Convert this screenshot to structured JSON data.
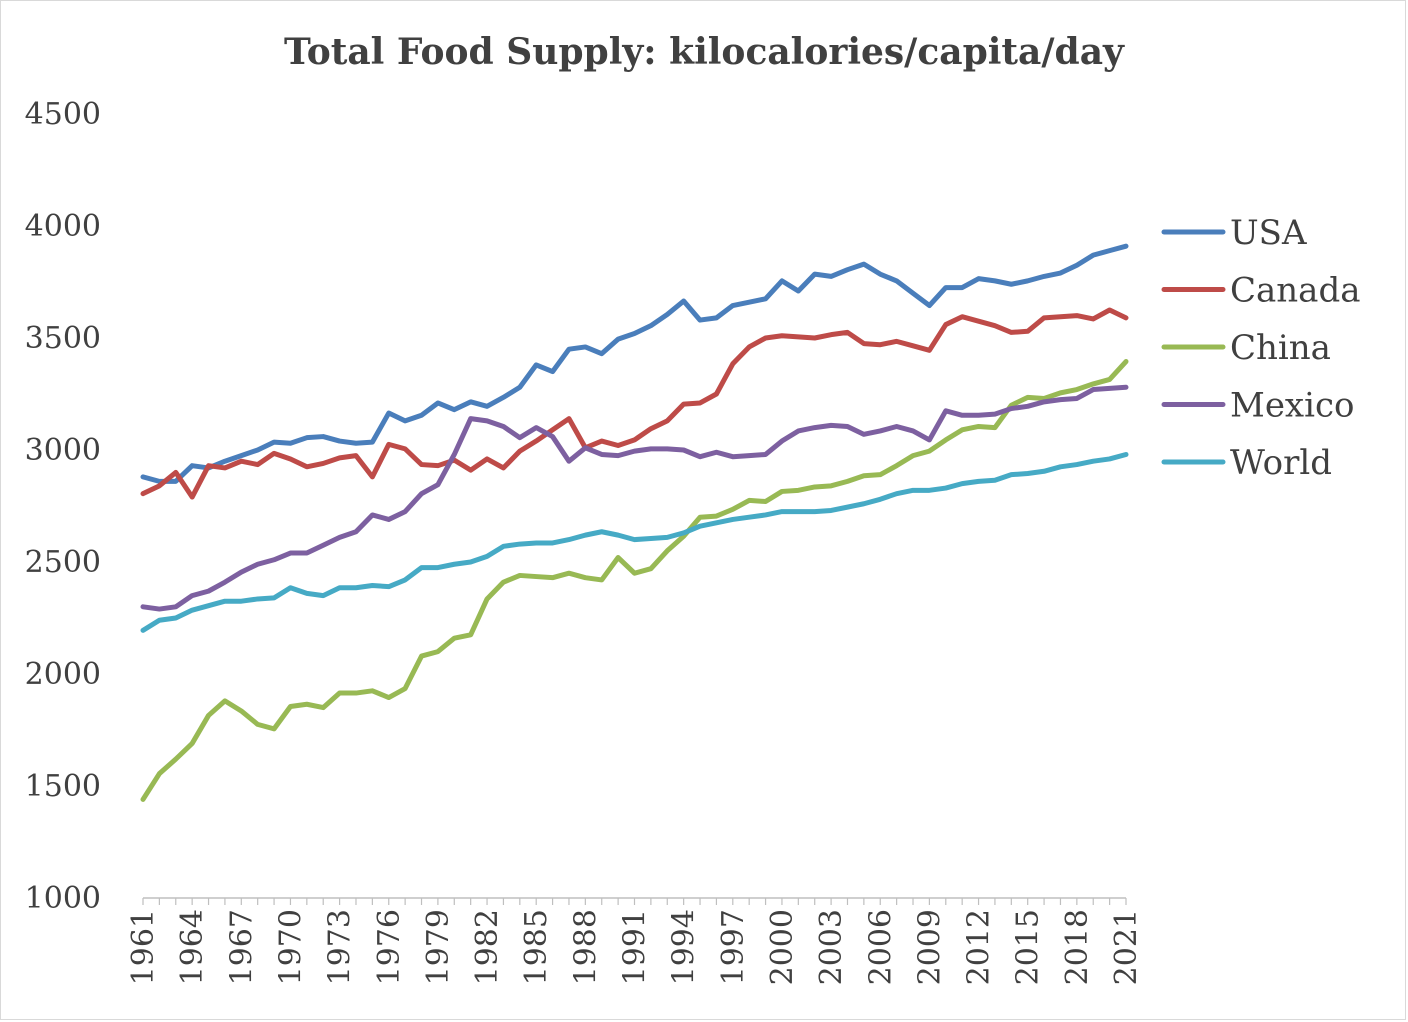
{
  "chart_data": {
    "type": "line",
    "title": "Total Food Supply: kilocalories/capita/day",
    "xlabel": "",
    "ylabel": "",
    "ylim": [
      1000,
      4500
    ],
    "yticks": [
      1000,
      1500,
      2000,
      2500,
      3000,
      3500,
      4000,
      4500
    ],
    "xtick_labels": [
      "1961",
      "1964",
      "1967",
      "1970",
      "1973",
      "1976",
      "1979",
      "1982",
      "1985",
      "1988",
      "1991",
      "1994",
      "1997",
      "2000",
      "2003",
      "2006",
      "2009",
      "2012",
      "2015",
      "2018",
      "2021"
    ],
    "grid": false,
    "legend_position": "right",
    "x": [
      1961,
      1962,
      1963,
      1964,
      1965,
      1966,
      1967,
      1968,
      1969,
      1970,
      1971,
      1972,
      1973,
      1974,
      1975,
      1976,
      1977,
      1978,
      1979,
      1980,
      1981,
      1982,
      1983,
      1984,
      1985,
      1986,
      1987,
      1988,
      1989,
      1990,
      1991,
      1992,
      1993,
      1994,
      1995,
      1996,
      1997,
      1998,
      1999,
      2000,
      2001,
      2002,
      2003,
      2004,
      2005,
      2006,
      2007,
      2008,
      2009,
      2010,
      2011,
      2012,
      2013,
      2014,
      2015,
      2016,
      2017,
      2018,
      2019,
      2020,
      2021
    ],
    "series": [
      {
        "name": "USA",
        "color": "#4a7ebb",
        "values": [
          2880,
          2860,
          2860,
          2930,
          2920,
          2950,
          2975,
          3000,
          3035,
          3030,
          3055,
          3060,
          3040,
          3030,
          3035,
          3165,
          3130,
          3155,
          3210,
          3180,
          3215,
          3195,
          3235,
          3280,
          3380,
          3350,
          3450,
          3460,
          3430,
          3495,
          3520,
          3555,
          3605,
          3665,
          3580,
          3590,
          3645,
          3660,
          3675,
          3755,
          3710,
          3785,
          3775,
          3805,
          3830,
          3785,
          3755,
          3700,
          3645,
          3725,
          3725,
          3765,
          3755,
          3740,
          3755,
          3775,
          3790,
          3825,
          3870,
          3890,
          3910
        ]
      },
      {
        "name": "Canada",
        "color": "#be4b48",
        "values": [
          2805,
          2840,
          2900,
          2790,
          2930,
          2920,
          2950,
          2935,
          2985,
          2960,
          2925,
          2940,
          2965,
          2975,
          2880,
          3025,
          3005,
          2935,
          2930,
          2955,
          2910,
          2960,
          2920,
          2995,
          3040,
          3090,
          3140,
          3010,
          3040,
          3020,
          3045,
          3095,
          3130,
          3205,
          3210,
          3250,
          3385,
          3460,
          3500,
          3510,
          3505,
          3500,
          3515,
          3525,
          3475,
          3470,
          3485,
          3465,
          3445,
          3560,
          3595,
          3575,
          3555,
          3525,
          3530,
          3590,
          3595,
          3600,
          3585,
          3625,
          3590
        ]
      },
      {
        "name": "China",
        "color": "#98b954",
        "values": [
          1440,
          1555,
          1620,
          1690,
          1815,
          1880,
          1835,
          1775,
          1755,
          1855,
          1865,
          1850,
          1915,
          1915,
          1925,
          1895,
          1935,
          2080,
          2100,
          2160,
          2175,
          2335,
          2410,
          2440,
          2435,
          2430,
          2450,
          2430,
          2420,
          2520,
          2450,
          2470,
          2550,
          2615,
          2700,
          2705,
          2735,
          2775,
          2770,
          2815,
          2820,
          2835,
          2840,
          2860,
          2885,
          2890,
          2930,
          2975,
          2995,
          3045,
          3090,
          3105,
          3100,
          3200,
          3235,
          3230,
          3255,
          3270,
          3295,
          3315,
          3395
        ]
      },
      {
        "name": "Mexico",
        "color": "#7d60a0",
        "values": [
          2300,
          2290,
          2300,
          2350,
          2370,
          2410,
          2455,
          2490,
          2510,
          2540,
          2540,
          2575,
          2610,
          2635,
          2710,
          2690,
          2725,
          2805,
          2845,
          2980,
          3140,
          3130,
          3105,
          3055,
          3100,
          3060,
          2950,
          3010,
          2980,
          2975,
          2995,
          3005,
          3005,
          3000,
          2970,
          2990,
          2970,
          2975,
          2980,
          3040,
          3085,
          3100,
          3110,
          3105,
          3070,
          3085,
          3105,
          3085,
          3045,
          3175,
          3155,
          3155,
          3160,
          3185,
          3195,
          3215,
          3225,
          3230,
          3270,
          3275,
          3280
        ]
      },
      {
        "name": "World",
        "color": "#46aac5",
        "values": [
          2195,
          2240,
          2250,
          2285,
          2305,
          2325,
          2325,
          2335,
          2340,
          2385,
          2360,
          2350,
          2385,
          2385,
          2395,
          2390,
          2420,
          2475,
          2475,
          2490,
          2500,
          2525,
          2570,
          2580,
          2585,
          2585,
          2600,
          2620,
          2635,
          2620,
          2600,
          2605,
          2610,
          2630,
          2660,
          2675,
          2690,
          2700,
          2710,
          2725,
          2725,
          2725,
          2730,
          2745,
          2760,
          2780,
          2805,
          2820,
          2820,
          2830,
          2850,
          2860,
          2865,
          2890,
          2895,
          2905,
          2925,
          2935,
          2950,
          2960,
          2980
        ]
      }
    ]
  }
}
